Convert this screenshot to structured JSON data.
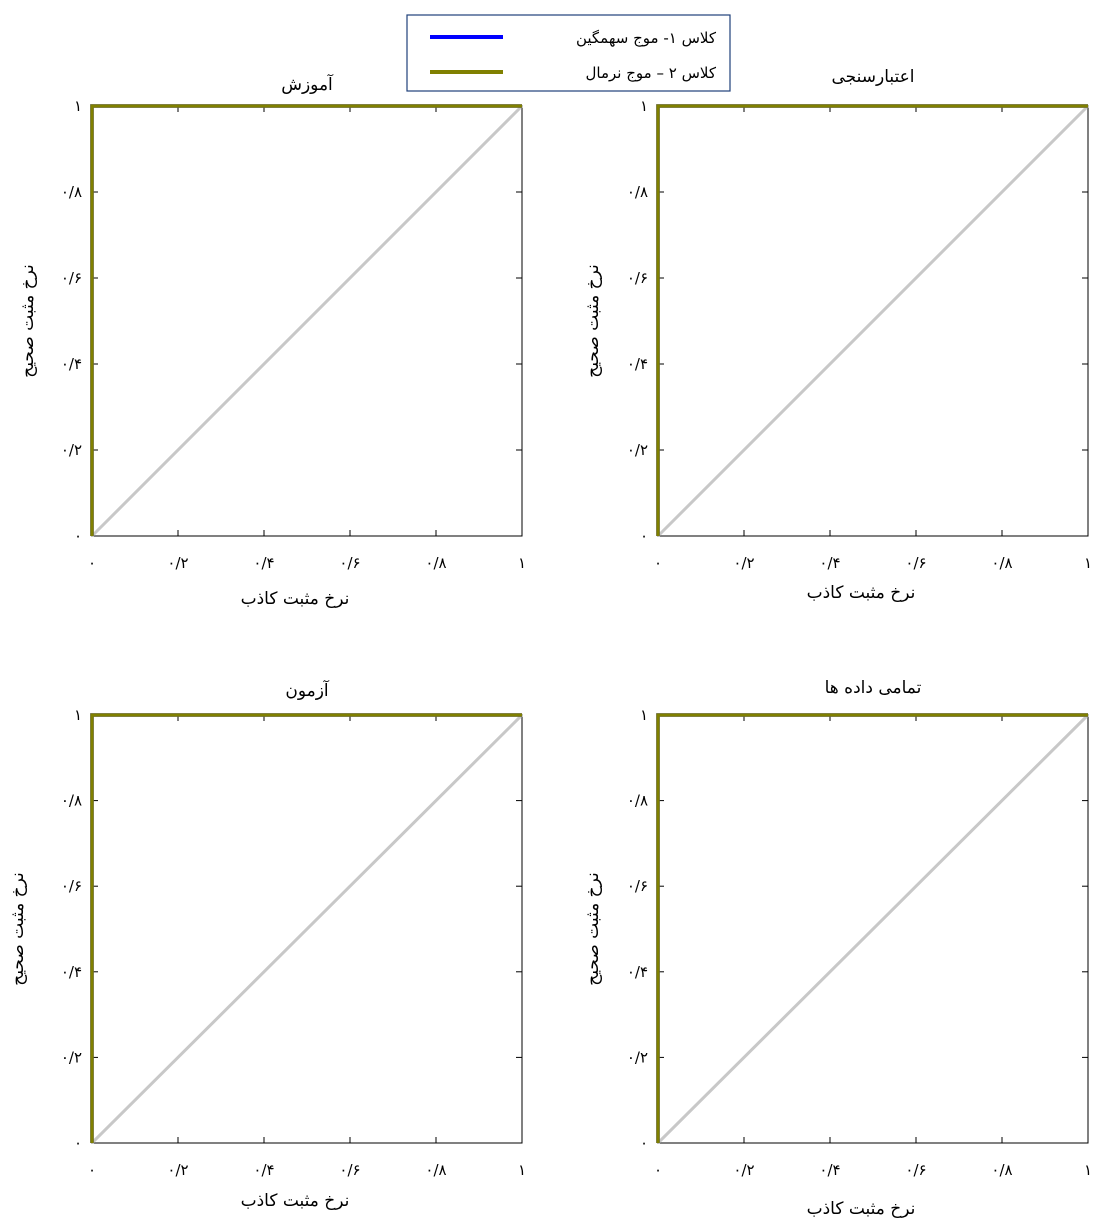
{
  "legend": {
    "entries": [
      {
        "label": "کلاس ۱- موج سهمگین",
        "color": "#0000ff"
      },
      {
        "label": "کلاس ۲ – موج نرمال",
        "color": "#808000"
      }
    ]
  },
  "chart_data": [
    {
      "type": "line",
      "title": "آموزش",
      "xlabel": "نرخ مثبت کاذب",
      "ylabel": "نرخ مثبت صحیح",
      "xlim": [
        0,
        1
      ],
      "ylim": [
        0,
        1
      ],
      "xticks": [
        {
          "value": 0,
          "label": "۰"
        },
        {
          "value": 0.2,
          "label": "۰/۲"
        },
        {
          "value": 0.4,
          "label": "۰/۴"
        },
        {
          "value": 0.6,
          "label": "۰/۶"
        },
        {
          "value": 0.8,
          "label": "۰/۸"
        },
        {
          "value": 1,
          "label": "۱"
        }
      ],
      "yticks": [
        {
          "value": 0,
          "label": "۰"
        },
        {
          "value": 0.2,
          "label": "۰/۲"
        },
        {
          "value": 0.4,
          "label": "۰/۴"
        },
        {
          "value": 0.6,
          "label": "۰/۶"
        },
        {
          "value": 0.8,
          "label": "۰/۸"
        },
        {
          "value": 1,
          "label": "۱"
        }
      ],
      "reference_line": {
        "x": [
          0,
          1
        ],
        "y": [
          0,
          1
        ],
        "color": "#c8c8c8"
      },
      "series": [
        {
          "name": "کلاس ۱- موج سهمگین",
          "color": "#0000ff",
          "x": [
            0,
            0,
            1
          ],
          "y": [
            0,
            1,
            1
          ]
        },
        {
          "name": "کلاس ۲ – موج نرمال",
          "color": "#808000",
          "x": [
            0,
            0,
            1
          ],
          "y": [
            0,
            1,
            1
          ]
        }
      ]
    },
    {
      "type": "line",
      "title": "اعتبارسنجی",
      "xlabel": "نرخ مثبت کاذب",
      "ylabel": "نرخ مثبت صحیح",
      "xlim": [
        0,
        1
      ],
      "ylim": [
        0,
        1
      ],
      "xticks": [
        {
          "value": 0,
          "label": "۰"
        },
        {
          "value": 0.2,
          "label": "۰/۲"
        },
        {
          "value": 0.4,
          "label": "۰/۴"
        },
        {
          "value": 0.6,
          "label": "۰/۶"
        },
        {
          "value": 0.8,
          "label": "۰/۸"
        },
        {
          "value": 1,
          "label": "۱"
        }
      ],
      "yticks": [
        {
          "value": 0,
          "label": "۰"
        },
        {
          "value": 0.2,
          "label": "۰/۲"
        },
        {
          "value": 0.4,
          "label": "۰/۴"
        },
        {
          "value": 0.6,
          "label": "۰/۶"
        },
        {
          "value": 0.8,
          "label": "۰/۸"
        },
        {
          "value": 1,
          "label": "۱"
        }
      ],
      "reference_line": {
        "x": [
          0,
          1
        ],
        "y": [
          0,
          1
        ],
        "color": "#c8c8c8"
      },
      "series": [
        {
          "name": "کلاس ۱- موج سهمگین",
          "color": "#0000ff",
          "x": [
            0,
            0,
            1
          ],
          "y": [
            0,
            1,
            1
          ]
        },
        {
          "name": "کلاس ۲ – موج نرمال",
          "color": "#808000",
          "x": [
            0,
            0,
            1
          ],
          "y": [
            0,
            1,
            1
          ]
        }
      ]
    },
    {
      "type": "line",
      "title": "آزمون",
      "xlabel": "نرخ مثبت کاذب",
      "ylabel": "نرخ مثبت صحیح",
      "xlim": [
        0,
        1
      ],
      "ylim": [
        0,
        1
      ],
      "xticks": [
        {
          "value": 0,
          "label": "۰"
        },
        {
          "value": 0.2,
          "label": "۰/۲"
        },
        {
          "value": 0.4,
          "label": "۰/۴"
        },
        {
          "value": 0.6,
          "label": "۰/۶"
        },
        {
          "value": 0.8,
          "label": "۰/۸"
        },
        {
          "value": 1,
          "label": "۱"
        }
      ],
      "yticks": [
        {
          "value": 0,
          "label": "۰"
        },
        {
          "value": 0.2,
          "label": "۰/۲"
        },
        {
          "value": 0.4,
          "label": "۰/۴"
        },
        {
          "value": 0.6,
          "label": "۰/۶"
        },
        {
          "value": 0.8,
          "label": "۰/۸"
        },
        {
          "value": 1,
          "label": "۱"
        }
      ],
      "reference_line": {
        "x": [
          0,
          1
        ],
        "y": [
          0,
          1
        ],
        "color": "#c8c8c8"
      },
      "series": [
        {
          "name": "کلاس ۱- موج سهمگین",
          "color": "#0000ff",
          "x": [
            0,
            0,
            1
          ],
          "y": [
            0,
            1,
            1
          ]
        },
        {
          "name": "کلاس ۲ – موج نرمال",
          "color": "#808000",
          "x": [
            0,
            0,
            1
          ],
          "y": [
            0,
            1,
            1
          ]
        }
      ]
    },
    {
      "type": "line",
      "title": "تمامی داده ها",
      "xlabel": "نرخ مثبت کاذب",
      "ylabel": "نرخ مثبت صحیح",
      "xlim": [
        0,
        1
      ],
      "ylim": [
        0,
        1
      ],
      "xticks": [
        {
          "value": 0,
          "label": "۰"
        },
        {
          "value": 0.2,
          "label": "۰/۲"
        },
        {
          "value": 0.4,
          "label": "۰/۴"
        },
        {
          "value": 0.6,
          "label": "۰/۶"
        },
        {
          "value": 0.8,
          "label": "۰/۸"
        },
        {
          "value": 1,
          "label": "۱"
        }
      ],
      "yticks": [
        {
          "value": 0,
          "label": "۰"
        },
        {
          "value": 0.2,
          "label": "۰/۲"
        },
        {
          "value": 0.4,
          "label": "۰/۴"
        },
        {
          "value": 0.6,
          "label": "۰/۶"
        },
        {
          "value": 0.8,
          "label": "۰/۸"
        },
        {
          "value": 1,
          "label": "۱"
        }
      ],
      "reference_line": {
        "x": [
          0,
          1
        ],
        "y": [
          0,
          1
        ],
        "color": "#c8c8c8"
      },
      "series": [
        {
          "name": "کلاس ۱- موج سهمگین",
          "color": "#0000ff",
          "x": [
            0,
            0,
            1
          ],
          "y": [
            0,
            1,
            1
          ]
        },
        {
          "name": "کلاس ۲ – موج نرمال",
          "color": "#808000",
          "x": [
            0,
            0,
            1
          ],
          "y": [
            0,
            1,
            1
          ]
        }
      ]
    }
  ]
}
